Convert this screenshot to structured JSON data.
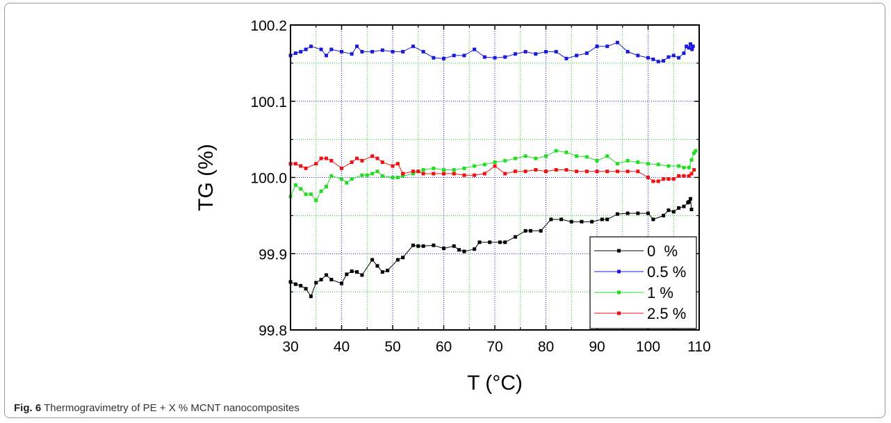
{
  "chart_data": {
    "type": "line",
    "xlabel": "T (°C)",
    "ylabel": "TG (%)",
    "xlim": [
      30,
      110
    ],
    "ylim": [
      99.8,
      100.2
    ],
    "x_ticks": [
      "30",
      "40",
      "50",
      "60",
      "70",
      "80",
      "90",
      "100",
      "110"
    ],
    "y_ticks": [
      "99.8",
      "99.9",
      "100.0",
      "100.1",
      "100.2"
    ],
    "x_tick_values": [
      30,
      40,
      50,
      60,
      70,
      80,
      90,
      100,
      110
    ],
    "y_tick_values": [
      99.8,
      99.9,
      100.0,
      100.1,
      100.2
    ],
    "x_minor_step": 5,
    "y_minor_step": 0.05,
    "grid": "on",
    "grid_colors": {
      "minor": "#22cc22",
      "major": "#2222cc"
    },
    "legend_position": "bottom-right",
    "series": [
      {
        "name": "0  %",
        "color": "#000000",
        "x": [
          30,
          31,
          32,
          33,
          34,
          35,
          36,
          37,
          38,
          40,
          41,
          42,
          43,
          44,
          46,
          47,
          48,
          49,
          51,
          52,
          54,
          55,
          56,
          58,
          60,
          62,
          63,
          64,
          66,
          67,
          69,
          71,
          72,
          74,
          76,
          77,
          79,
          81,
          83,
          85,
          87,
          89,
          91,
          92,
          94,
          96,
          98,
          100,
          101,
          103,
          104,
          105,
          106,
          107,
          107.8,
          108,
          108.3,
          108.5
        ],
        "y": [
          99.863,
          99.86,
          99.858,
          99.854,
          99.844,
          99.862,
          99.866,
          99.872,
          99.866,
          99.861,
          99.873,
          99.877,
          99.876,
          99.872,
          99.892,
          99.884,
          99.876,
          99.878,
          99.892,
          99.895,
          99.911,
          99.91,
          99.91,
          99.911,
          99.907,
          99.91,
          99.905,
          99.903,
          99.906,
          99.915,
          99.915,
          99.915,
          99.915,
          99.922,
          99.93,
          99.93,
          99.93,
          99.945,
          99.945,
          99.942,
          99.942,
          99.942,
          99.945,
          99.945,
          99.952,
          99.953,
          99.953,
          99.953,
          99.945,
          99.95,
          99.957,
          99.955,
          99.96,
          99.962,
          99.967,
          99.968,
          99.972,
          99.958
        ]
      },
      {
        "name": "0.5 %",
        "color": "#1a1adc",
        "x": [
          30,
          31,
          32,
          33,
          34,
          36,
          37,
          38,
          40,
          42,
          43,
          44,
          46,
          48,
          50,
          52,
          54,
          56,
          58,
          60,
          62,
          64,
          66,
          68,
          70,
          72,
          74,
          76,
          78,
          80,
          82,
          84,
          86,
          88,
          90,
          92,
          94,
          96,
          98,
          100,
          101,
          102,
          103,
          104,
          105,
          106,
          107,
          107.5,
          108,
          108.3,
          108.6,
          108.8
        ],
        "y": [
          100.16,
          100.163,
          100.165,
          100.168,
          100.172,
          100.168,
          100.16,
          100.168,
          100.165,
          100.162,
          100.172,
          100.165,
          100.165,
          100.167,
          100.165,
          100.165,
          100.172,
          100.165,
          100.157,
          100.156,
          100.16,
          100.16,
          100.168,
          100.158,
          100.157,
          100.158,
          100.162,
          100.165,
          100.162,
          100.165,
          100.165,
          100.156,
          100.16,
          100.163,
          100.172,
          100.172,
          100.177,
          100.165,
          100.16,
          100.157,
          100.155,
          100.152,
          100.153,
          100.158,
          100.16,
          100.157,
          100.163,
          100.172,
          100.17,
          100.175,
          100.168,
          100.172
        ]
      },
      {
        "name": "1 %",
        "color": "#22dd22",
        "x": [
          30,
          31,
          32,
          33,
          34,
          35,
          36,
          37,
          38,
          40,
          41,
          42,
          44,
          45,
          46,
          47,
          48,
          50,
          51,
          52,
          54,
          56,
          58,
          60,
          62,
          64,
          66,
          68,
          70,
          72,
          74,
          76,
          78,
          80,
          82,
          84,
          86,
          88,
          90,
          92,
          94,
          96,
          98,
          100,
          102,
          104,
          106,
          107,
          108,
          108.5,
          109,
          109.3
        ],
        "y": [
          99.975,
          99.99,
          99.985,
          99.978,
          99.978,
          99.97,
          99.982,
          99.988,
          100.002,
          99.998,
          99.993,
          99.998,
          100.003,
          100.003,
          100.005,
          100.008,
          100.002,
          100.0,
          100.0,
          100.002,
          100.005,
          100.01,
          100.012,
          100.01,
          100.01,
          100.012,
          100.015,
          100.017,
          100.02,
          100.022,
          100.025,
          100.028,
          100.025,
          100.028,
          100.035,
          100.033,
          100.028,
          100.027,
          100.022,
          100.028,
          100.018,
          100.022,
          100.02,
          100.018,
          100.017,
          100.015,
          100.015,
          100.013,
          100.013,
          100.023,
          100.032,
          100.035
        ]
      },
      {
        "name": "2.5 %",
        "color": "#ee1111",
        "x": [
          30,
          31,
          32,
          33,
          35,
          36,
          37,
          38,
          40,
          42,
          43,
          44,
          46,
          47,
          48,
          50,
          51,
          52,
          54,
          55,
          56,
          58,
          60,
          62,
          64,
          66,
          68,
          70,
          72,
          74,
          76,
          78,
          80,
          82,
          84,
          86,
          88,
          90,
          92,
          94,
          96,
          98,
          100,
          101,
          102,
          103,
          104,
          105,
          106,
          107,
          108,
          108.5,
          109
        ],
        "y": [
          100.018,
          100.018,
          100.015,
          100.012,
          100.018,
          100.025,
          100.025,
          100.022,
          100.012,
          100.02,
          100.025,
          100.022,
          100.028,
          100.025,
          100.02,
          100.015,
          100.018,
          100.005,
          100.008,
          100.008,
          100.005,
          100.005,
          100.005,
          100.005,
          100.003,
          100.003,
          100.005,
          100.015,
          100.005,
          100.008,
          100.008,
          100.01,
          100.008,
          100.01,
          100.01,
          100.008,
          100.008,
          100.008,
          100.008,
          100.008,
          100.008,
          100.008,
          100.0,
          99.995,
          99.995,
          99.998,
          99.998,
          99.998,
          100.002,
          100.002,
          100.002,
          100.005,
          100.01
        ]
      }
    ]
  },
  "caption": {
    "label": "Fig. 6",
    "text": " Thermogravimetry of PE + X % MCNT nanocomposites"
  }
}
